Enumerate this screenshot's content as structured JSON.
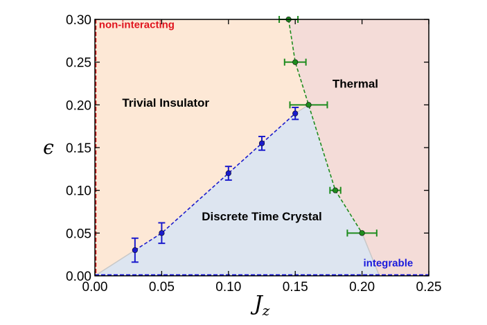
{
  "chart_data": {
    "type": "scatter",
    "title": "",
    "xlabel": "J",
    "xlabel_subscript": "z",
    "ylabel": "ϵ",
    "xlim": [
      0.0,
      0.25
    ],
    "ylim": [
      0.0,
      0.3
    ],
    "xticks": [
      "0.00",
      "0.05",
      "0.10",
      "0.15",
      "0.20",
      "0.25"
    ],
    "yticks": [
      "0.00",
      "0.05",
      "0.10",
      "0.15",
      "0.20",
      "0.25",
      "0.30"
    ],
    "xtick_values": [
      0.0,
      0.05,
      0.1,
      0.15,
      0.2,
      0.25
    ],
    "ytick_values": [
      0.0,
      0.05,
      0.1,
      0.15,
      0.2,
      0.25,
      0.3
    ],
    "grid": false,
    "series": [
      {
        "name": "Discrete Time Crystal boundary",
        "color": "#1a1acc",
        "error_direction": "y",
        "points": [
          {
            "x": 0.03,
            "y": 0.03,
            "err": 0.014
          },
          {
            "x": 0.05,
            "y": 0.05,
            "err": 0.012
          },
          {
            "x": 0.1,
            "y": 0.12,
            "err": 0.008
          },
          {
            "x": 0.125,
            "y": 0.155,
            "err": 0.008
          },
          {
            "x": 0.15,
            "y": 0.19,
            "err": 0.007
          }
        ]
      },
      {
        "name": "Thermal boundary",
        "color": "#1e8c1e",
        "error_direction": "x",
        "points": [
          {
            "x": 0.145,
            "y": 0.3,
            "err": 0.007
          },
          {
            "x": 0.15,
            "y": 0.25,
            "err": 0.008
          },
          {
            "x": 0.16,
            "y": 0.2,
            "err": 0.014
          },
          {
            "x": 0.18,
            "y": 0.1,
            "err": 0.004
          },
          {
            "x": 0.2,
            "y": 0.05,
            "err": 0.011
          }
        ]
      }
    ],
    "regions": [
      {
        "name": "Trivial Insulator",
        "color": "#fde8d6",
        "polygon": [
          [
            0.0,
            0.0
          ],
          [
            0.0,
            0.3
          ],
          [
            0.145,
            0.3
          ],
          [
            0.15,
            0.25
          ],
          [
            0.16,
            0.2
          ],
          [
            0.15,
            0.19
          ],
          [
            0.125,
            0.155
          ],
          [
            0.1,
            0.12
          ],
          [
            0.05,
            0.05
          ],
          [
            0.03,
            0.03
          ]
        ]
      },
      {
        "name": "Thermal",
        "color": "#f4dcd8",
        "polygon": [
          [
            0.145,
            0.3
          ],
          [
            0.25,
            0.3
          ],
          [
            0.25,
            0.0
          ],
          [
            0.213,
            0.0
          ],
          [
            0.2,
            0.05
          ],
          [
            0.18,
            0.1
          ],
          [
            0.16,
            0.2
          ],
          [
            0.15,
            0.25
          ]
        ]
      },
      {
        "name": "Discrete Time Crystal",
        "color": "#dde5f0",
        "polygon": [
          [
            0.0,
            0.0
          ],
          [
            0.03,
            0.03
          ],
          [
            0.05,
            0.05
          ],
          [
            0.1,
            0.12
          ],
          [
            0.125,
            0.155
          ],
          [
            0.15,
            0.19
          ],
          [
            0.16,
            0.2
          ],
          [
            0.18,
            0.1
          ],
          [
            0.2,
            0.05
          ],
          [
            0.213,
            0.0
          ]
        ]
      }
    ],
    "annotations": [
      {
        "text": "Trivial Insulator",
        "x": 0.053,
        "y": 0.198,
        "style": "region"
      },
      {
        "text": "Thermal",
        "x": 0.195,
        "y": 0.22,
        "style": "region"
      },
      {
        "text": "Discrete Time Crystal",
        "x": 0.125,
        "y": 0.065,
        "style": "region"
      },
      {
        "text": "non-interacting",
        "x": 0.003,
        "y": 0.29,
        "style": "red"
      },
      {
        "text": "integrable",
        "x": 0.201,
        "y": 0.011,
        "style": "blue"
      }
    ],
    "edge_lines": [
      {
        "name": "non-interacting",
        "axis": "x",
        "value": 0.0,
        "color": "#d42020"
      },
      {
        "name": "integrable",
        "axis": "y",
        "value": 0.0,
        "color": "#1a1adc"
      }
    ]
  }
}
